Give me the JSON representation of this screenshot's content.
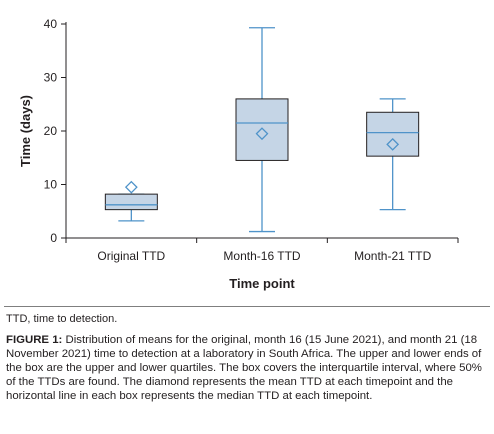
{
  "chart_data": {
    "type": "boxplot",
    "ylabel": "Time (days)",
    "xlabel": "Time point",
    "ylim": [
      0,
      40
    ],
    "yticks": [
      "0",
      "10",
      "20",
      "30",
      "40"
    ],
    "grid": false,
    "categories": [
      "Original TTD",
      "Month-16 TTD",
      "Month-21 TTD"
    ],
    "boxes": [
      {
        "label": "Original TTD",
        "min": 3.2,
        "q1": 5.3,
        "median": 6.2,
        "q3": 8.2,
        "max": 8.2,
        "mean": 9.5
      },
      {
        "label": "Month-16 TTD",
        "min": 1.2,
        "q1": 14.5,
        "median": 21.5,
        "q3": 26.0,
        "max": 39.3,
        "mean": 19.5
      },
      {
        "label": "Month-21 TTD",
        "min": 5.3,
        "q1": 15.3,
        "median": 19.7,
        "q3": 23.5,
        "max": 26.0,
        "mean": 17.5
      }
    ],
    "colors": {
      "box_fill": "#c5d5e6",
      "box_edge": "#231f20",
      "whisker": "#4f93c9",
      "median": "#4f93c9",
      "mean_marker": "#4f93c9",
      "axis": "#231f20"
    },
    "mean_marker": "diamond"
  },
  "footnote": "TTD, time to detection.",
  "caption": {
    "label": "FIGURE 1:",
    "text": " Distribution of means for the original, month 16 (15 June 2021), and month 21 (18 November 2021) time to detection at a laboratory in South Africa. The upper and lower ends of the box are the upper and lower quartiles. The box covers the interquartile interval, where 50% of the TTDs are found. The diamond represents the mean TTD at each timepoint and the horizontal line in each box represents the median TTD at each timepoint."
  }
}
